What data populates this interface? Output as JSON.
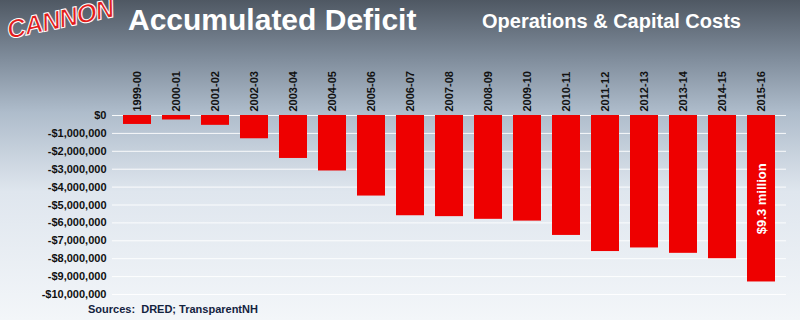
{
  "chart_data": {
    "type": "bar",
    "logo": "CANNON",
    "title": "Accumulated Deficit",
    "subtitle": "Operations & Capital Costs",
    "source": "Sources:  DRED; TransparentNH",
    "categories": [
      "1999-00",
      "2000-01",
      "2001-02",
      "2002-03",
      "2003-04",
      "2004-05",
      "2005-06",
      "2006-07",
      "2007-08",
      "2008-09",
      "2009-10",
      "2010-11",
      "2011-12",
      "2012-13",
      "2013-14",
      "2014-15",
      "2015-16"
    ],
    "values": [
      -500000,
      -250000,
      -550000,
      -1300000,
      -2400000,
      -3100000,
      -4500000,
      -5600000,
      -5650000,
      -5800000,
      -5900000,
      -6700000,
      -7600000,
      -7400000,
      -7700000,
      -8000000,
      -9300000
    ],
    "color": "#ee0000",
    "ylim": [
      -10000000,
      0
    ],
    "yticks": [
      {
        "value": 0,
        "label": "$0"
      },
      {
        "value": -1000000,
        "label": "-$1,000,000"
      },
      {
        "value": -2000000,
        "label": "-$2,000,000"
      },
      {
        "value": -3000000,
        "label": "-$3,000,000"
      },
      {
        "value": -4000000,
        "label": "-$4,000,000"
      },
      {
        "value": -5000000,
        "label": "-$5,000,000"
      },
      {
        "value": -6000000,
        "label": "-$6,000,000"
      },
      {
        "value": -7000000,
        "label": "-$7,000,000"
      },
      {
        "value": -8000000,
        "label": "-$8,000,000"
      },
      {
        "value": -9000000,
        "label": "-$9,000,000"
      },
      {
        "value": -10000000,
        "label": "-$10,000,000"
      }
    ],
    "grid": true,
    "annotations": [
      {
        "category": "2015-16",
        "label": "$9.3 million"
      }
    ]
  }
}
